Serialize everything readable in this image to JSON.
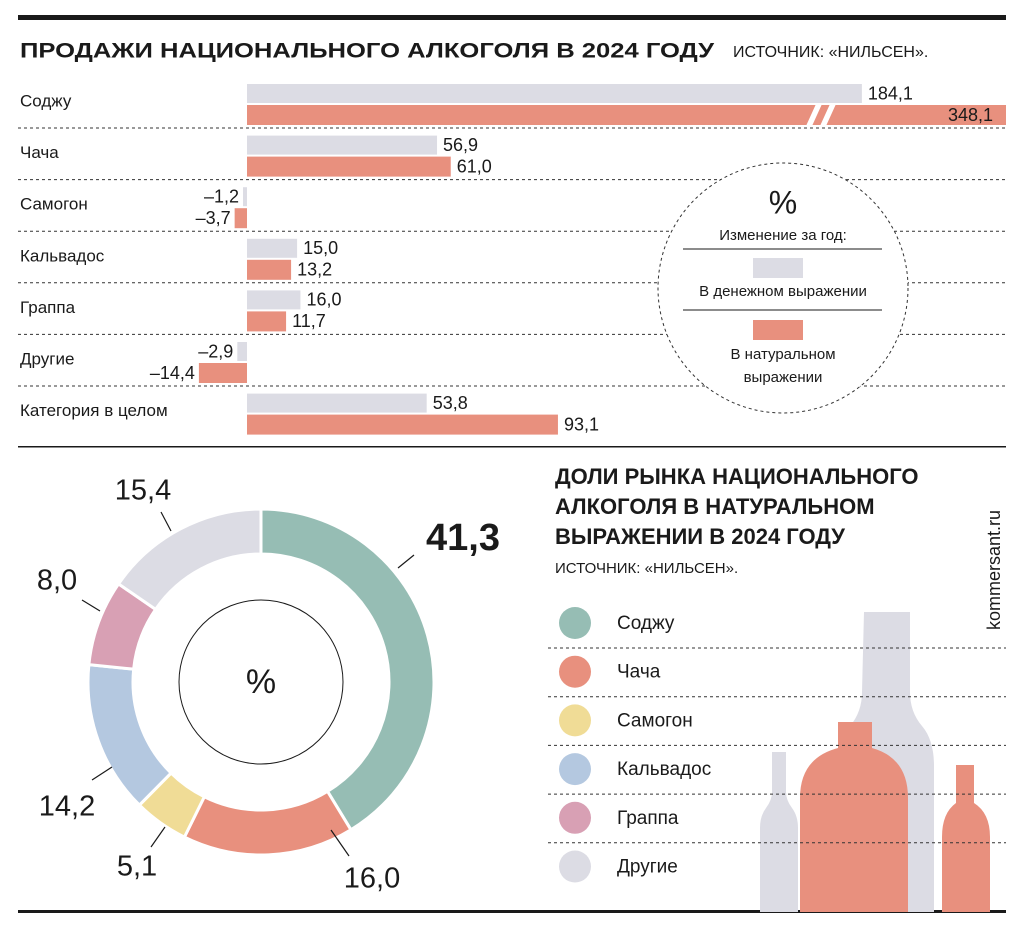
{
  "credit": "kommersant.ru",
  "chart_data": [
    {
      "type": "bar",
      "orientation": "horizontal",
      "title": "ПРОДАЖИ НАЦИОНАЛЬНОГО АЛКОГОЛЯ В 2024 ГОДУ",
      "source": "ИСТОЧНИК: «НИЛЬСЕН».",
      "legend_title": "%",
      "legend_subtitle": "Изменение за год:",
      "categories": [
        "Соджу",
        "Чача",
        "Самогон",
        "Кальвадос",
        "Граппа",
        "Другие",
        "Категория в целом"
      ],
      "series": [
        {
          "name": "В денежном выражении",
          "color": "#dcdce4",
          "values": [
            184.1,
            56.9,
            -1.2,
            15.0,
            16.0,
            -2.9,
            53.8
          ],
          "value_labels": [
            "184,1",
            "56,9",
            "–1,2",
            "15,0",
            "16,0",
            "–2,9",
            "53,8"
          ]
        },
        {
          "name": "В натуральном выражении",
          "color": "#e8907e",
          "values": [
            348.1,
            61.0,
            -3.7,
            13.2,
            11.7,
            -14.4,
            93.1
          ],
          "value_labels": [
            "348,1",
            "61,0",
            "–3,7",
            "13,2",
            "11,7",
            "–14,4",
            "93,1"
          ]
        }
      ]
    },
    {
      "type": "donut",
      "title": "ДОЛИ РЫНКА НАЦИОНАЛЬНОГО АЛКОГОЛЯ В НАТУРАЛЬНОМ ВЫРАЖЕНИИ В 2024 ГОДУ",
      "source": "ИСТОЧНИК: «НИЛЬСЕН».",
      "center_label": "%",
      "categories": [
        "Соджу",
        "Чача",
        "Самогон",
        "Кальвадос",
        "Граппа",
        "Другие"
      ],
      "values": [
        41.3,
        16.0,
        5.1,
        14.2,
        8.0,
        15.4
      ],
      "value_labels": [
        "41,3",
        "16,0",
        "5,1",
        "14,2",
        "8,0",
        "15,4"
      ],
      "colors": [
        "#96bdb4",
        "#e8907e",
        "#f0dc96",
        "#b4c8e0",
        "#d8a0b4",
        "#dcdce4"
      ]
    }
  ]
}
